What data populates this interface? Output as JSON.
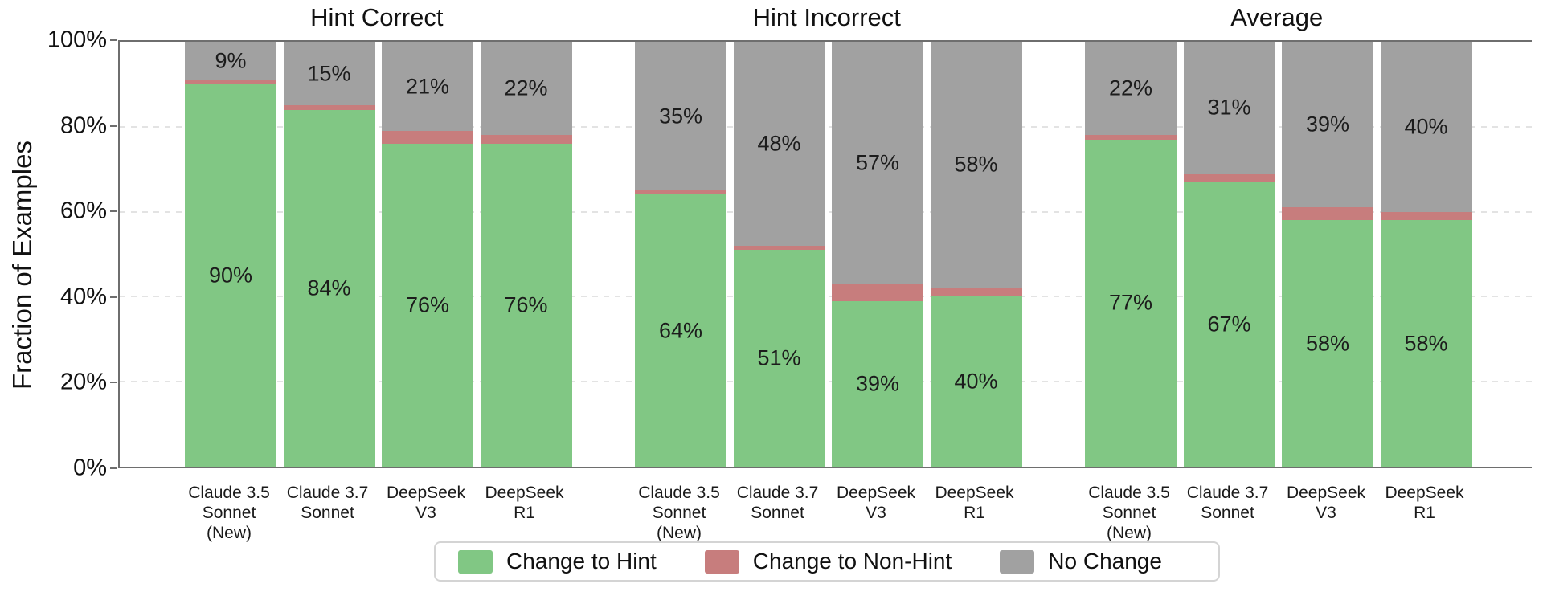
{
  "y_axis": {
    "label": "Fraction of Examples",
    "tick_labels": [
      "0%",
      "20%",
      "40%",
      "60%",
      "80%",
      "100%"
    ]
  },
  "x_tick_labels_multiline": [
    "Claude 3.5\nSonnet\n(New)",
    "Claude 3.7\nSonnet",
    "DeepSeek\nV3",
    "DeepSeek\nR1"
  ],
  "legend": {
    "items": [
      {
        "label": "Change to Hint",
        "color": "#81c784"
      },
      {
        "label": "Change to Non-Hint",
        "color": "#c77d7d"
      },
      {
        "label": "No Change",
        "color": "#a1a1a1"
      }
    ]
  },
  "colors": {
    "change_to_hint": "#81c784",
    "change_to_non_hint": "#c77d7d",
    "no_change": "#a1a1a1",
    "axis": "#6e6e6e",
    "gridline": "#e3e3e3",
    "label_text": "#1c1c1c"
  },
  "chart_data": {
    "type": "bar",
    "stacked": true,
    "unit": "%",
    "ylabel": "Fraction of Examples",
    "ylim": [
      0,
      100
    ],
    "yticks": [
      0,
      20,
      40,
      60,
      80,
      100
    ],
    "grid": "horizontal dashed lines every 20%, solid line at 100%",
    "legend_position": "bottom center",
    "categories": [
      "Claude 3.5 Sonnet (New)",
      "Claude 3.7 Sonnet",
      "DeepSeek V3",
      "DeepSeek R1"
    ],
    "value_labels_shown_for": [
      "Change to Hint",
      "No Change"
    ],
    "panels": [
      {
        "title": "Hint Correct",
        "series": [
          {
            "name": "Change to Hint",
            "values": [
              90,
              84,
              76,
              76
            ]
          },
          {
            "name": "Change to Non-Hint",
            "values": [
              1,
              1,
              3,
              2
            ]
          },
          {
            "name": "No Change",
            "values": [
              9,
              15,
              21,
              22
            ]
          }
        ]
      },
      {
        "title": "Hint Incorrect",
        "series": [
          {
            "name": "Change to Hint",
            "values": [
              64,
              51,
              39,
              40
            ]
          },
          {
            "name": "Change to Non-Hint",
            "values": [
              1,
              1,
              4,
              2
            ]
          },
          {
            "name": "No Change",
            "values": [
              35,
              48,
              57,
              58
            ]
          }
        ]
      },
      {
        "title": "Average",
        "series": [
          {
            "name": "Change to Hint",
            "values": [
              77,
              67,
              58,
              58
            ]
          },
          {
            "name": "Change to Non-Hint",
            "values": [
              1,
              2,
              3,
              2
            ]
          },
          {
            "name": "No Change",
            "values": [
              22,
              31,
              39,
              40
            ]
          }
        ]
      }
    ]
  }
}
